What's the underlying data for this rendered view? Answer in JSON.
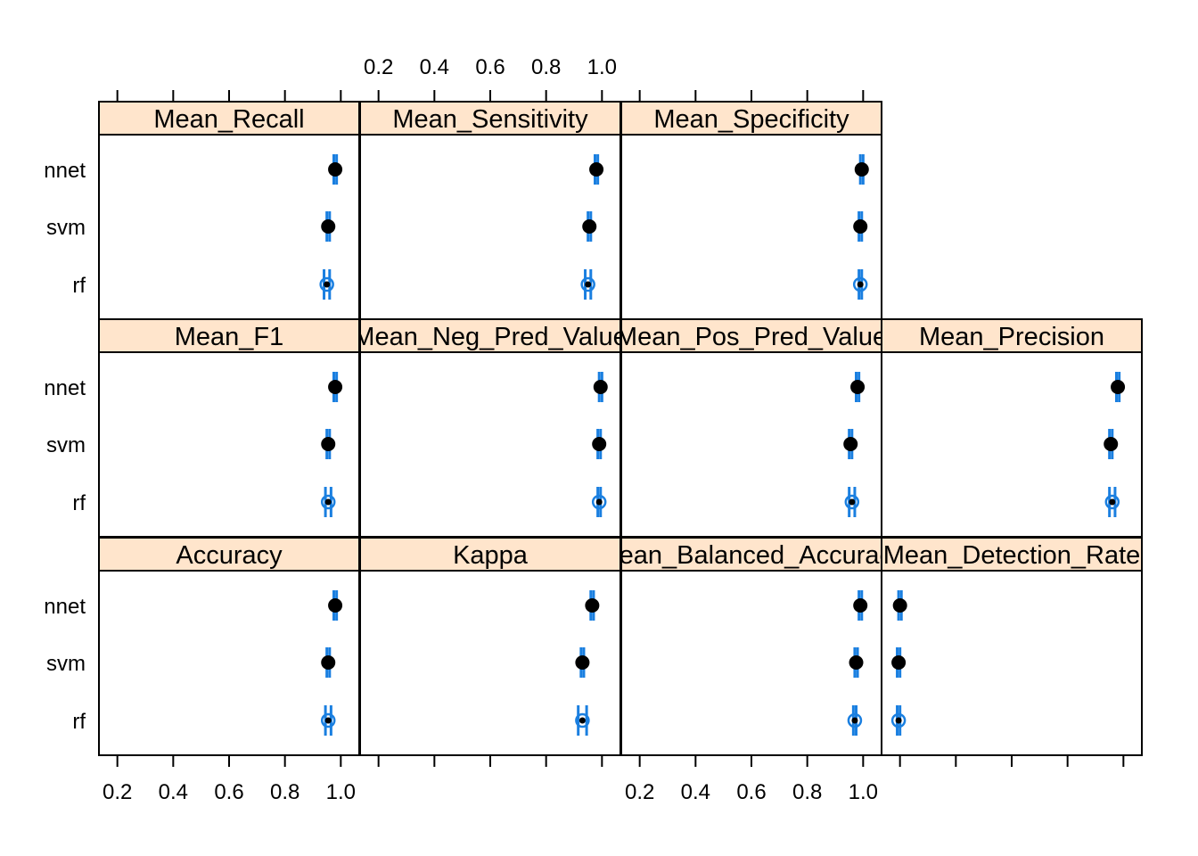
{
  "chart_data": {
    "type": "dotplot",
    "layout": {
      "columns": 4,
      "rows": 3
    },
    "models": [
      "rf",
      "svm",
      "nnet"
    ],
    "xlim": [
      0.15,
      1.05
    ],
    "xticks": [
      0.2,
      0.4,
      0.6,
      0.8,
      1.0
    ],
    "xtick_labels": [
      "0.2",
      "0.4",
      "0.6",
      "0.8",
      "1.0"
    ],
    "panels": [
      {
        "row": 0,
        "col": 0,
        "label": "Mean_Recall",
        "points": [
          {
            "model": "nnet",
            "value": 0.98,
            "lower": 0.975,
            "upper": 0.985
          },
          {
            "model": "svm",
            "value": 0.955,
            "lower": 0.95,
            "upper": 0.96
          },
          {
            "model": "rf",
            "value": 0.95,
            "lower": 0.94,
            "upper": 0.96
          }
        ]
      },
      {
        "row": 0,
        "col": 1,
        "label": "Mean_Sensitivity",
        "points": [
          {
            "model": "nnet",
            "value": 0.98,
            "lower": 0.975,
            "upper": 0.985
          },
          {
            "model": "svm",
            "value": 0.955,
            "lower": 0.95,
            "upper": 0.96
          },
          {
            "model": "rf",
            "value": 0.95,
            "lower": 0.94,
            "upper": 0.96
          }
        ]
      },
      {
        "row": 0,
        "col": 2,
        "label": "Mean_Specificity",
        "points": [
          {
            "model": "nnet",
            "value": 0.995,
            "lower": 0.99,
            "upper": 1.0
          },
          {
            "model": "svm",
            "value": 0.99,
            "lower": 0.985,
            "upper": 0.995
          },
          {
            "model": "rf",
            "value": 0.99,
            "lower": 0.985,
            "upper": 0.995
          }
        ]
      },
      {
        "row": 1,
        "col": 0,
        "label": "Mean_F1",
        "points": [
          {
            "model": "nnet",
            "value": 0.98,
            "lower": 0.975,
            "upper": 0.985
          },
          {
            "model": "svm",
            "value": 0.955,
            "lower": 0.95,
            "upper": 0.96
          },
          {
            "model": "rf",
            "value": 0.955,
            "lower": 0.945,
            "upper": 0.965
          }
        ]
      },
      {
        "row": 1,
        "col": 1,
        "label": "Mean_Neg_Pred_Value",
        "points": [
          {
            "model": "nnet",
            "value": 0.995,
            "lower": 0.99,
            "upper": 1.0
          },
          {
            "model": "svm",
            "value": 0.99,
            "lower": 0.985,
            "upper": 0.995
          },
          {
            "model": "rf",
            "value": 0.99,
            "lower": 0.985,
            "upper": 0.995
          }
        ]
      },
      {
        "row": 1,
        "col": 2,
        "label": "Mean_Pos_Pred_Value",
        "points": [
          {
            "model": "nnet",
            "value": 0.98,
            "lower": 0.975,
            "upper": 0.985
          },
          {
            "model": "svm",
            "value": 0.955,
            "lower": 0.95,
            "upper": 0.96
          },
          {
            "model": "rf",
            "value": 0.96,
            "lower": 0.95,
            "upper": 0.97
          }
        ]
      },
      {
        "row": 1,
        "col": 3,
        "label": "Mean_Precision",
        "points": [
          {
            "model": "nnet",
            "value": 0.98,
            "lower": 0.975,
            "upper": 0.985
          },
          {
            "model": "svm",
            "value": 0.955,
            "lower": 0.95,
            "upper": 0.96
          },
          {
            "model": "rf",
            "value": 0.96,
            "lower": 0.95,
            "upper": 0.97
          }
        ]
      },
      {
        "row": 2,
        "col": 0,
        "label": "Accuracy",
        "points": [
          {
            "model": "nnet",
            "value": 0.98,
            "lower": 0.975,
            "upper": 0.985
          },
          {
            "model": "svm",
            "value": 0.955,
            "lower": 0.95,
            "upper": 0.96
          },
          {
            "model": "rf",
            "value": 0.955,
            "lower": 0.945,
            "upper": 0.965
          }
        ]
      },
      {
        "row": 2,
        "col": 1,
        "label": "Kappa",
        "points": [
          {
            "model": "nnet",
            "value": 0.965,
            "lower": 0.96,
            "upper": 0.97
          },
          {
            "model": "svm",
            "value": 0.93,
            "lower": 0.925,
            "upper": 0.935
          },
          {
            "model": "rf",
            "value": 0.93,
            "lower": 0.915,
            "upper": 0.945
          }
        ]
      },
      {
        "row": 2,
        "col": 2,
        "label": "Mean_Balanced_Accuracy",
        "points": [
          {
            "model": "nnet",
            "value": 0.99,
            "lower": 0.985,
            "upper": 0.995
          },
          {
            "model": "svm",
            "value": 0.975,
            "lower": 0.97,
            "upper": 0.98
          },
          {
            "model": "rf",
            "value": 0.97,
            "lower": 0.965,
            "upper": 0.975
          }
        ]
      },
      {
        "row": 2,
        "col": 3,
        "label": "Mean_Detection_Rate",
        "points": [
          {
            "model": "nnet",
            "value": 0.2,
            "lower": 0.195,
            "upper": 0.205
          },
          {
            "model": "svm",
            "value": 0.195,
            "lower": 0.19,
            "upper": 0.2
          },
          {
            "model": "rf",
            "value": 0.195,
            "lower": 0.19,
            "upper": 0.2
          }
        ]
      }
    ]
  }
}
